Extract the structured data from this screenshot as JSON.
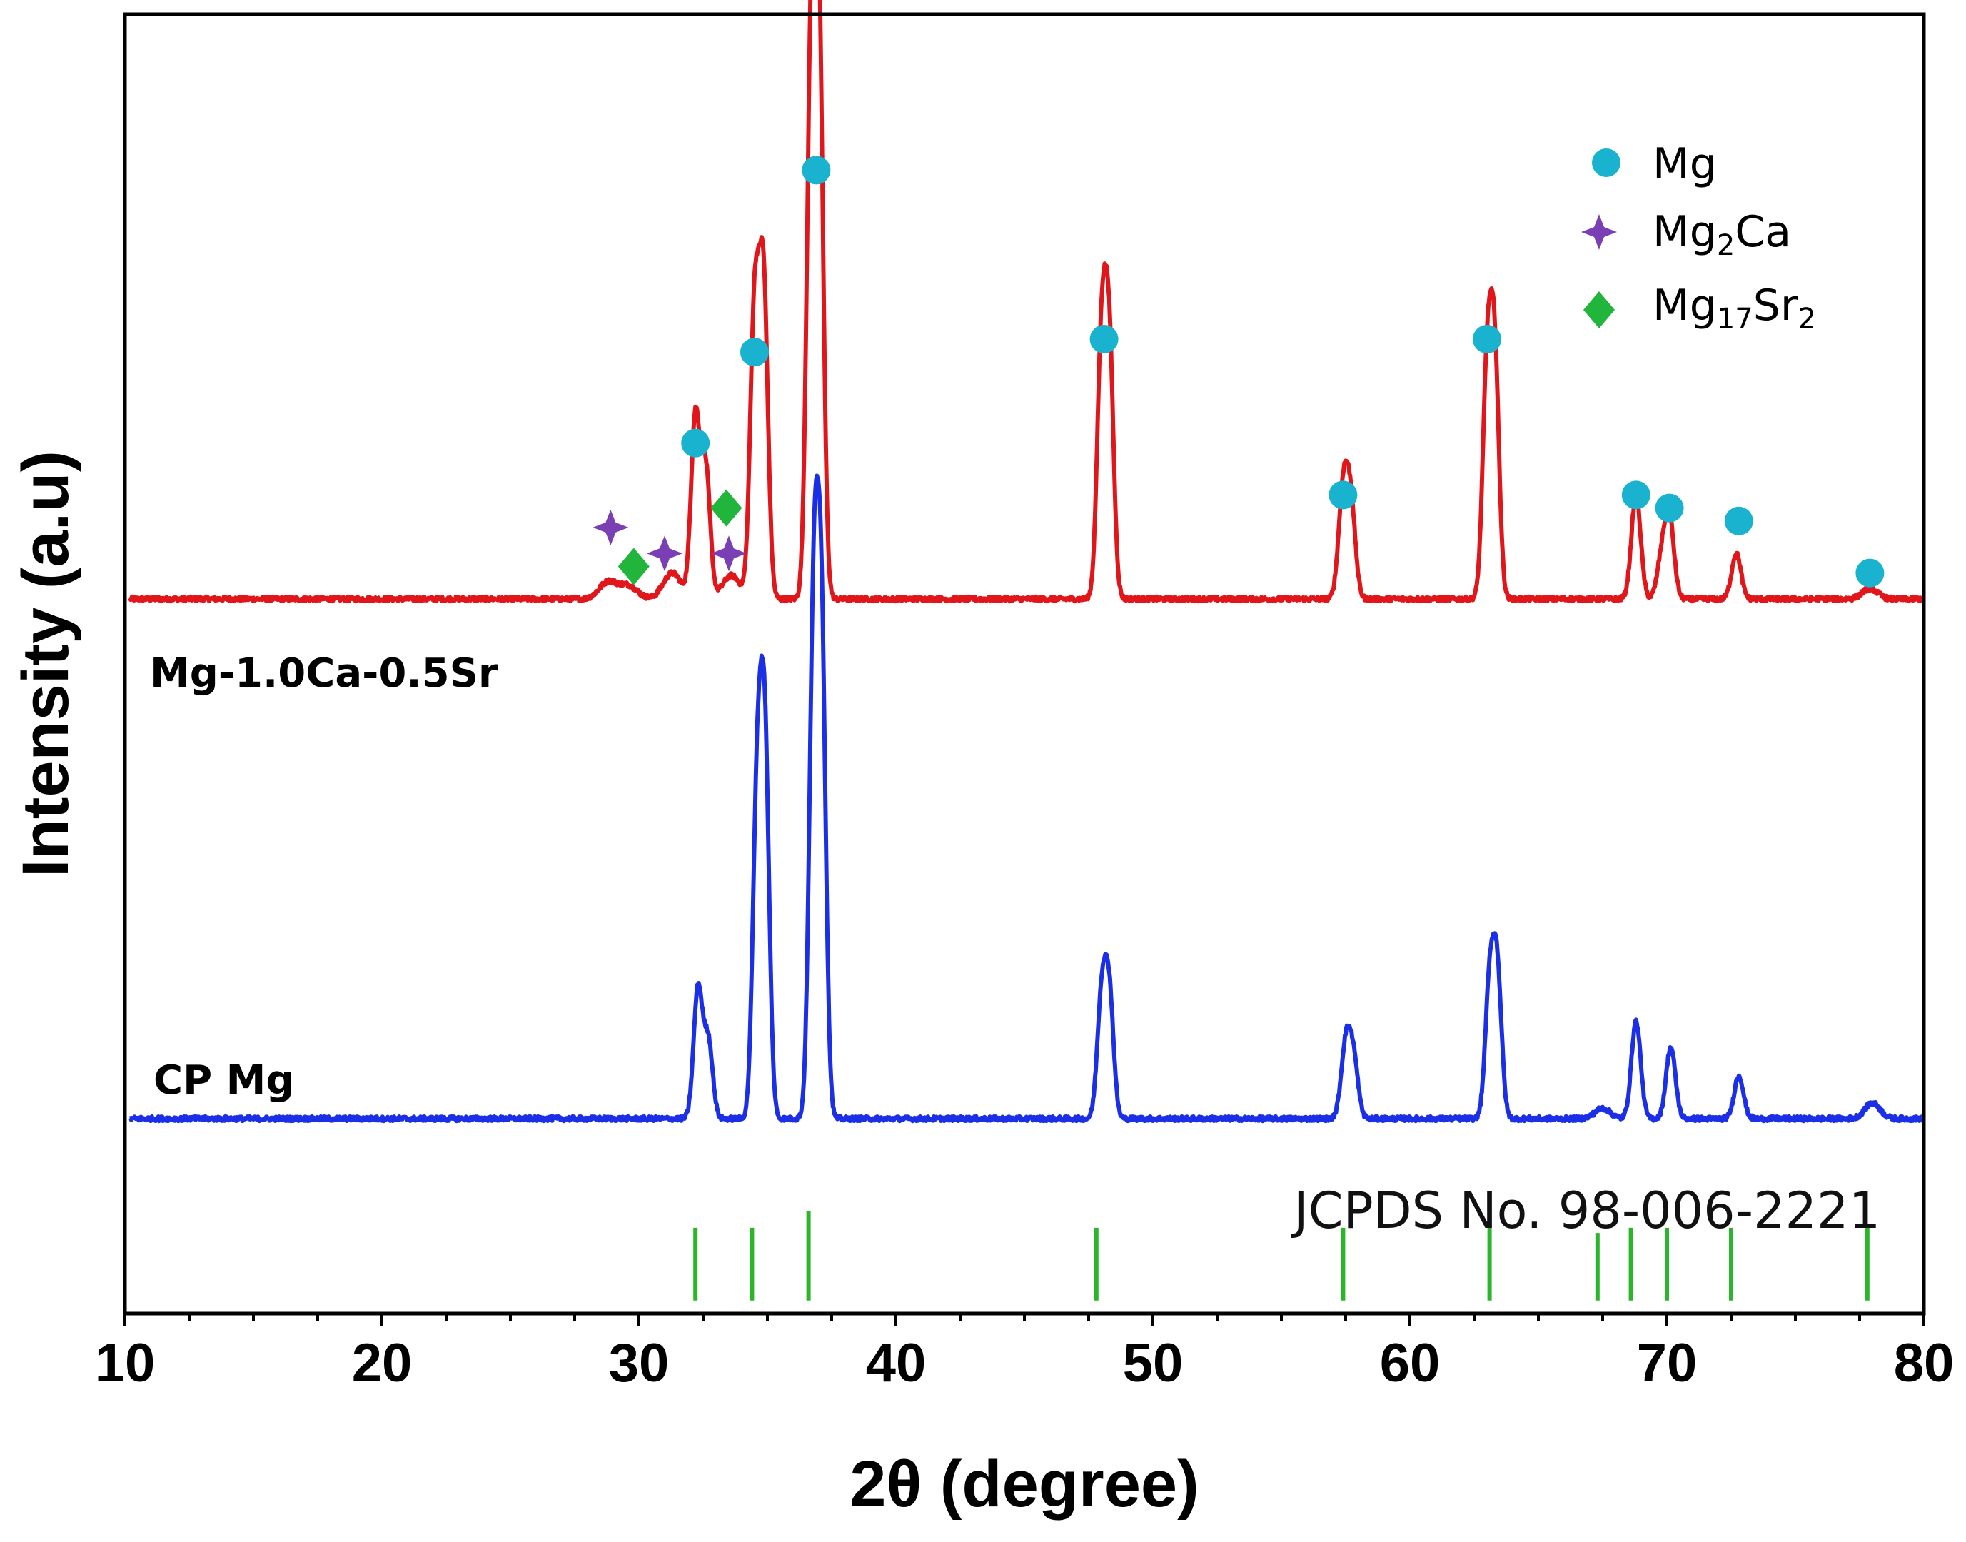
{
  "chart_data": {
    "type": "line",
    "title": "",
    "xlabel": "2θ (degree)",
    "ylabel": "Intensity (a.u)",
    "xlim": [
      10,
      80
    ],
    "xticks": [
      10,
      20,
      30,
      40,
      50,
      60,
      70,
      80
    ],
    "minor_xtick_step": 2.5,
    "ylim": [
      0,
      100
    ],
    "series": [
      {
        "name": "Mg-1.0Ca-0.5Sr",
        "label": "Mg-1.0Ca-0.5Sr",
        "color": "#e0161b",
        "baseline": 55,
        "peaks": [
          {
            "x": 28.8,
            "h": 1.3,
            "w": 0.35
          },
          {
            "x": 29.6,
            "h": 1.0,
            "w": 0.35
          },
          {
            "x": 31.3,
            "h": 2.0,
            "w": 0.35
          },
          {
            "x": 32.2,
            "h": 14,
            "w": 0.17
          },
          {
            "x": 32.6,
            "h": 10,
            "w": 0.17
          },
          {
            "x": 33.6,
            "h": 1.8,
            "w": 0.35
          },
          {
            "x": 34.5,
            "h": 22,
            "w": 0.17
          },
          {
            "x": 34.85,
            "h": 24,
            "w": 0.17
          },
          {
            "x": 36.7,
            "h": 40,
            "w": 0.17
          },
          {
            "x": 37.0,
            "h": 43,
            "w": 0.17
          },
          {
            "x": 48.0,
            "h": 19,
            "w": 0.17
          },
          {
            "x": 48.3,
            "h": 19,
            "w": 0.17
          },
          {
            "x": 57.4,
            "h": 8,
            "w": 0.18
          },
          {
            "x": 57.7,
            "h": 7,
            "w": 0.18
          },
          {
            "x": 63.0,
            "h": 17,
            "w": 0.17
          },
          {
            "x": 63.3,
            "h": 18,
            "w": 0.17
          },
          {
            "x": 68.8,
            "h": 8,
            "w": 0.18
          },
          {
            "x": 69.8,
            "h": 3,
            "w": 0.18
          },
          {
            "x": 70.1,
            "h": 6,
            "w": 0.18
          },
          {
            "x": 72.7,
            "h": 3.5,
            "w": 0.18
          },
          {
            "x": 77.9,
            "h": 0.8,
            "w": 0.3
          }
        ]
      },
      {
        "name": "CP Mg",
        "label": "CP Mg",
        "color": "#1b2fe6",
        "baseline": 15,
        "peaks": [
          {
            "x": 32.3,
            "h": 10,
            "w": 0.17
          },
          {
            "x": 32.7,
            "h": 6,
            "w": 0.17
          },
          {
            "x": 34.6,
            "h": 24,
            "w": 0.17
          },
          {
            "x": 34.9,
            "h": 28,
            "w": 0.17
          },
          {
            "x": 36.8,
            "h": 37,
            "w": 0.17
          },
          {
            "x": 37.1,
            "h": 36,
            "w": 0.17
          },
          {
            "x": 48.0,
            "h": 9,
            "w": 0.17
          },
          {
            "x": 48.3,
            "h": 9.5,
            "w": 0.17
          },
          {
            "x": 57.5,
            "h": 5.5,
            "w": 0.18
          },
          {
            "x": 57.8,
            "h": 4.5,
            "w": 0.18
          },
          {
            "x": 63.1,
            "h": 10,
            "w": 0.17
          },
          {
            "x": 63.4,
            "h": 11,
            "w": 0.17
          },
          {
            "x": 67.5,
            "h": 0.8,
            "w": 0.3
          },
          {
            "x": 68.8,
            "h": 7.5,
            "w": 0.18
          },
          {
            "x": 70.15,
            "h": 5.5,
            "w": 0.18
          },
          {
            "x": 72.8,
            "h": 3.3,
            "w": 0.18
          },
          {
            "x": 78.0,
            "h": 1.2,
            "w": 0.3
          }
        ]
      }
    ],
    "reference": {
      "label": "JCPDS No. 98-006-2221",
      "color": "#2bb52b",
      "baseline": 1,
      "lines": [
        {
          "x": 32.2,
          "h": 5.6
        },
        {
          "x": 34.4,
          "h": 5.6
        },
        {
          "x": 36.6,
          "h": 6.9
        },
        {
          "x": 47.8,
          "h": 5.6
        },
        {
          "x": 57.4,
          "h": 5.6
        },
        {
          "x": 63.1,
          "h": 5.6
        },
        {
          "x": 67.3,
          "h": 5.2
        },
        {
          "x": 68.6,
          "h": 5.6
        },
        {
          "x": 70.0,
          "h": 5.6
        },
        {
          "x": 72.5,
          "h": 5.6
        },
        {
          "x": 77.8,
          "h": 5.6
        }
      ]
    },
    "phase_markers": [
      {
        "phase": "Mg",
        "x": 32.2,
        "y": 67
      },
      {
        "phase": "Mg",
        "x": 34.5,
        "y": 74
      },
      {
        "phase": "Mg",
        "x": 36.9,
        "y": 88
      },
      {
        "phase": "Mg",
        "x": 48.1,
        "y": 75
      },
      {
        "phase": "Mg",
        "x": 57.4,
        "y": 63
      },
      {
        "phase": "Mg",
        "x": 63.0,
        "y": 75
      },
      {
        "phase": "Mg",
        "x": 68.8,
        "y": 63
      },
      {
        "phase": "Mg",
        "x": 70.1,
        "y": 62
      },
      {
        "phase": "Mg",
        "x": 72.8,
        "y": 61
      },
      {
        "phase": "Mg",
        "x": 77.9,
        "y": 57
      },
      {
        "phase": "Mg2Ca",
        "x": 28.9,
        "y": 60.5
      },
      {
        "phase": "Mg2Ca",
        "x": 31.0,
        "y": 58.5
      },
      {
        "phase": "Mg2Ca",
        "x": 33.5,
        "y": 58.5
      },
      {
        "phase": "Mg17Sr2",
        "x": 29.8,
        "y": 57.5
      },
      {
        "phase": "Mg17Sr2",
        "x": 33.4,
        "y": 62
      }
    ],
    "legend": {
      "placement": "top-right",
      "entries": [
        {
          "phase": "Mg",
          "label": "Mg",
          "marker": "circle",
          "color": "#19b2cf"
        },
        {
          "phase": "Mg2Ca",
          "label_main": "Mg",
          "label_sub": "2",
          "label_tail": "Ca",
          "marker": "star",
          "color": "#7a3fb5"
        },
        {
          "phase": "Mg17Sr2",
          "label_main": "Mg",
          "label_sub": "17",
          "label_tail": "Sr",
          "label_sub2": "2",
          "marker": "diamond",
          "color": "#22b53c"
        }
      ]
    }
  }
}
